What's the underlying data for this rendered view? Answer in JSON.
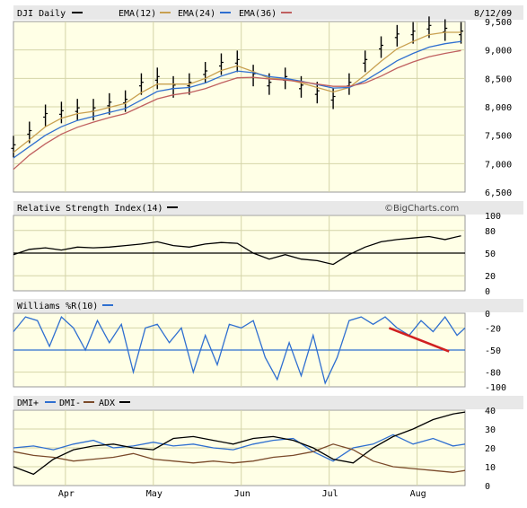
{
  "header": {
    "symbol": "DJI Daily",
    "ema12_label": "EMA(12)",
    "ema24_label": "EMA(24)",
    "ema36_label": "EMA(36)",
    "date": "8/12/09"
  },
  "watermark": "©BigCharts.com",
  "colors": {
    "price": "#000000",
    "ema12": "#c8a050",
    "ema24": "#2f6fd0",
    "ema36": "#c06060",
    "rsi": "#000000",
    "williams": "#2f6fd0",
    "dmi_plus": "#2f6fd0",
    "dmi_minus": "#7a4a2a",
    "adx": "#000000",
    "trend_annotation": "#d02020",
    "panel_bg": "#ffffe6",
    "header_bg": "#e8e8e8",
    "grid": "#d4d4a8"
  },
  "chart_data": [
    {
      "type": "line",
      "panel": "price",
      "title": "DJI Daily",
      "y_ticks": [
        "9,500",
        "9,000",
        "8,500",
        "8,000",
        "7,500",
        "7,000",
        "6,500"
      ],
      "ylim": [
        6500,
        9500
      ],
      "x_ticks": [
        "Apr",
        "May",
        "Jun",
        "Jul",
        "Aug"
      ],
      "x_tick_days": [
        13,
        35,
        57,
        79,
        101
      ],
      "n_days": 113,
      "series": [
        {
          "name": "DJI Daily",
          "style": "ohlc-bars",
          "x": [
            0,
            4,
            8,
            12,
            16,
            20,
            24,
            28,
            32,
            36,
            40,
            44,
            48,
            52,
            56,
            60,
            64,
            68,
            72,
            76,
            80,
            84,
            88,
            92,
            96,
            100,
            104,
            108,
            112
          ],
          "values": [
            7300,
            7550,
            7850,
            7900,
            7950,
            7950,
            8050,
            8100,
            8400,
            8500,
            8350,
            8400,
            8600,
            8750,
            8800,
            8550,
            8400,
            8500,
            8350,
            8250,
            8150,
            8400,
            8800,
            9050,
            9250,
            9300,
            9400,
            9350,
            9300
          ]
        },
        {
          "name": "EMA(12)",
          "x": [
            0,
            4,
            8,
            12,
            16,
            20,
            24,
            28,
            32,
            36,
            40,
            44,
            48,
            52,
            56,
            60,
            64,
            68,
            72,
            76,
            80,
            84,
            88,
            92,
            96,
            100,
            104,
            108,
            112
          ],
          "values": [
            7200,
            7420,
            7650,
            7800,
            7880,
            7920,
            7990,
            8060,
            8250,
            8400,
            8400,
            8400,
            8500,
            8640,
            8720,
            8620,
            8500,
            8490,
            8420,
            8340,
            8260,
            8340,
            8560,
            8800,
            9020,
            9150,
            9270,
            9310,
            9310
          ]
        },
        {
          "name": "EMA(24)",
          "x": [
            0,
            4,
            8,
            12,
            16,
            20,
            24,
            28,
            32,
            36,
            40,
            44,
            48,
            52,
            56,
            60,
            64,
            68,
            72,
            76,
            80,
            84,
            88,
            92,
            96,
            100,
            104,
            108,
            112
          ],
          "values": [
            7100,
            7300,
            7500,
            7650,
            7760,
            7830,
            7900,
            7970,
            8120,
            8270,
            8320,
            8340,
            8420,
            8540,
            8630,
            8600,
            8530,
            8500,
            8450,
            8390,
            8330,
            8340,
            8460,
            8630,
            8810,
            8940,
            9050,
            9110,
            9150
          ]
        },
        {
          "name": "EMA(36)",
          "x": [
            0,
            4,
            8,
            12,
            16,
            20,
            24,
            28,
            32,
            36,
            40,
            44,
            48,
            52,
            56,
            60,
            64,
            68,
            72,
            76,
            80,
            84,
            88,
            92,
            96,
            100,
            104,
            108,
            112
          ],
          "values": [
            6900,
            7150,
            7350,
            7520,
            7640,
            7730,
            7810,
            7880,
            8010,
            8140,
            8210,
            8250,
            8320,
            8420,
            8510,
            8520,
            8490,
            8470,
            8440,
            8400,
            8360,
            8360,
            8420,
            8540,
            8680,
            8790,
            8880,
            8940,
            8990
          ]
        }
      ]
    },
    {
      "type": "line",
      "panel": "rsi",
      "title": "Relative Strength Index(14)",
      "y_ticks": [
        "100",
        "80",
        "50",
        "20",
        "0"
      ],
      "ylim": [
        0,
        100
      ],
      "reference_line": 50,
      "series": [
        {
          "name": "Relative Strength Index(14)",
          "x": [
            0,
            4,
            8,
            12,
            16,
            20,
            24,
            28,
            32,
            36,
            40,
            44,
            48,
            52,
            56,
            60,
            64,
            68,
            72,
            76,
            80,
            84,
            88,
            92,
            96,
            100,
            104,
            108,
            112
          ],
          "values": [
            48,
            55,
            57,
            54,
            58,
            57,
            58,
            60,
            62,
            65,
            60,
            58,
            62,
            64,
            63,
            50,
            42,
            48,
            42,
            40,
            35,
            48,
            58,
            65,
            68,
            70,
            72,
            68,
            73
          ]
        }
      ]
    },
    {
      "type": "line",
      "panel": "williams",
      "title": "Williams %R(10)",
      "y_ticks": [
        "0",
        "-20",
        "-50",
        "-80",
        "-100"
      ],
      "ylim": [
        -100,
        0
      ],
      "reference_line": -50,
      "series": [
        {
          "name": "Williams %R(10)",
          "x": [
            0,
            3,
            6,
            9,
            12,
            15,
            18,
            21,
            24,
            27,
            30,
            33,
            36,
            39,
            42,
            45,
            48,
            51,
            54,
            57,
            60,
            63,
            66,
            69,
            72,
            75,
            78,
            81,
            84,
            87,
            90,
            93,
            96,
            99,
            102,
            105,
            108,
            111,
            113
          ],
          "values": [
            -25,
            -5,
            -10,
            -45,
            -5,
            -20,
            -50,
            -10,
            -40,
            -15,
            -80,
            -20,
            -15,
            -40,
            -20,
            -80,
            -30,
            -70,
            -15,
            -20,
            -10,
            -60,
            -90,
            -40,
            -85,
            -30,
            -95,
            -60,
            -10,
            -5,
            -15,
            -5,
            -20,
            -30,
            -10,
            -25,
            -5,
            -30,
            -20
          ]
        },
        {
          "name": "trend",
          "style": "annotation",
          "x": [
            94,
            109
          ],
          "values": [
            -20,
            -52
          ]
        }
      ]
    },
    {
      "type": "line",
      "panel": "dmi",
      "title": "DMI+ DMI- ADX",
      "y_ticks": [
        "40",
        "30",
        "20",
        "10",
        "0"
      ],
      "ylim": [
        0,
        40
      ],
      "series": [
        {
          "name": "DMI+",
          "x": [
            0,
            5,
            10,
            15,
            20,
            25,
            30,
            35,
            40,
            45,
            50,
            55,
            60,
            65,
            70,
            75,
            80,
            85,
            90,
            95,
            100,
            105,
            110,
            113
          ],
          "values": [
            20,
            21,
            19,
            22,
            24,
            20,
            21,
            23,
            21,
            22,
            20,
            19,
            22,
            24,
            25,
            18,
            13,
            20,
            22,
            27,
            22,
            25,
            21,
            22
          ]
        },
        {
          "name": "DMI-",
          "x": [
            0,
            5,
            10,
            15,
            20,
            25,
            30,
            35,
            40,
            45,
            50,
            55,
            60,
            65,
            70,
            75,
            80,
            85,
            90,
            95,
            100,
            105,
            110,
            113
          ],
          "values": [
            18,
            16,
            15,
            13,
            14,
            15,
            17,
            14,
            13,
            12,
            13,
            12,
            13,
            15,
            16,
            18,
            22,
            19,
            13,
            10,
            9,
            8,
            7,
            8
          ]
        },
        {
          "name": "ADX",
          "x": [
            0,
            5,
            10,
            15,
            20,
            25,
            30,
            35,
            40,
            45,
            50,
            55,
            60,
            65,
            70,
            75,
            80,
            85,
            90,
            95,
            100,
            105,
            110,
            113
          ],
          "values": [
            10,
            6,
            14,
            19,
            21,
            22,
            20,
            19,
            25,
            26,
            24,
            22,
            25,
            26,
            24,
            20,
            14,
            12,
            20,
            26,
            30,
            35,
            38,
            39
          ]
        }
      ]
    }
  ]
}
